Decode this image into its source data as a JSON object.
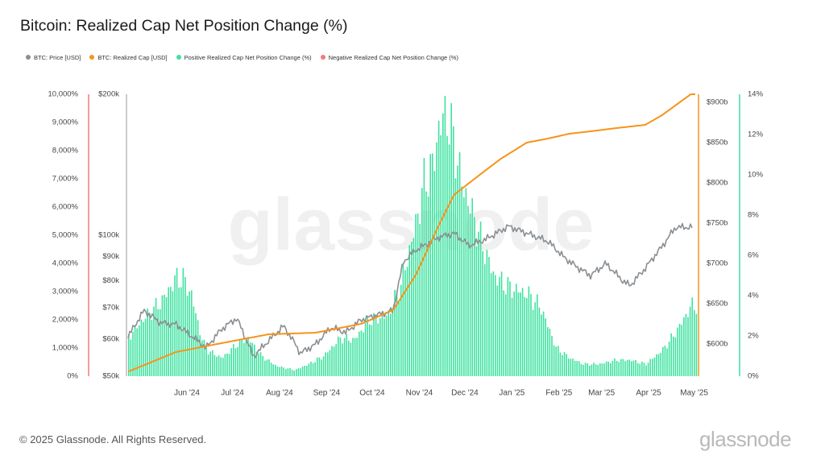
{
  "chart_data": {
    "type": "bar+line",
    "title": "Bitcoin: Realized Cap Net Position Change (%)",
    "legend": [
      {
        "label": "BTC: Price [USD]",
        "color": "#8a8f93"
      },
      {
        "label": "BTC: Realized Cap [USD]",
        "color": "#f7931a"
      },
      {
        "label": "Positive Realized Cap Net Position Change (%)",
        "color": "#3ee2a0"
      },
      {
        "label": "Negative Realized Cap Net Position Change (%)",
        "color": "#f47a7a"
      }
    ],
    "x_ticks": [
      "Jun '24",
      "Jul '24",
      "Aug '24",
      "Sep '24",
      "Oct '24",
      "Nov '24",
      "Dec '24",
      "Jan '25",
      "Feb '25",
      "Mar '25",
      "Apr '25",
      "May '25"
    ],
    "axes": {
      "left_pct": {
        "ticks": [
          "10,000%",
          "9,000%",
          "8,000%",
          "7,000%",
          "6,000%",
          "5,000%",
          "4,000%",
          "3,000%",
          "2,000%",
          "1,000%",
          "0%"
        ],
        "range": [
          0,
          10000
        ],
        "color": "#f47a7a"
      },
      "price": {
        "ticks": [
          "$200k",
          "$100k",
          "$90k",
          "$80k",
          "$70k",
          "$60k",
          "$50k"
        ],
        "values": [
          200000,
          100000,
          90000,
          80000,
          70000,
          60000,
          50000
        ],
        "scale": "log",
        "range": [
          50000,
          200000
        ]
      },
      "realized_cap": {
        "ticks": [
          "$900b",
          "$850b",
          "$800b",
          "$750b",
          "$700b",
          "$650b",
          "$600b"
        ],
        "values": [
          900,
          850,
          800,
          750,
          700,
          650,
          600
        ],
        "range": [
          560,
          910
        ],
        "color": "#f7931a"
      },
      "right_pct": {
        "ticks": [
          "14%",
          "12%",
          "10%",
          "8%",
          "6%",
          "4%",
          "2%",
          "0%"
        ],
        "values": [
          14,
          12,
          10,
          8,
          6,
          4,
          2,
          0
        ],
        "range": [
          0,
          14
        ],
        "color": "#3ee2a0"
      }
    },
    "grid": false,
    "legend_position": "top-left",
    "series": [
      {
        "name": "Positive Realized Cap Net Position Change (%)",
        "axis": "right_pct",
        "x": [
          "2024-05-15",
          "2024-05-25",
          "2024-06-05",
          "2024-06-15",
          "2024-06-20",
          "2024-06-25",
          "2024-07-01",
          "2024-07-05",
          "2024-07-15",
          "2024-07-25",
          "2024-08-01",
          "2024-08-10",
          "2024-08-20",
          "2024-09-01",
          "2024-09-10",
          "2024-09-20",
          "2024-10-01",
          "2024-10-10",
          "2024-10-20",
          "2024-11-01",
          "2024-11-10",
          "2024-11-20",
          "2024-11-25",
          "2024-12-01",
          "2024-12-05",
          "2024-12-10",
          "2024-12-15",
          "2024-12-20",
          "2024-12-25",
          "2025-01-01",
          "2025-01-10",
          "2025-01-20",
          "2025-02-01",
          "2025-02-10",
          "2025-02-20",
          "2025-03-01",
          "2025-03-10",
          "2025-03-20",
          "2025-04-01",
          "2025-04-10",
          "2025-04-20",
          "2025-05-01",
          "2025-05-10",
          "2025-05-20"
        ],
        "values": [
          2.0,
          2.9,
          3.7,
          4.9,
          4.8,
          4.0,
          2.0,
          1.3,
          0.9,
          1.6,
          1.9,
          1.0,
          0.5,
          0.3,
          0.6,
          1.0,
          1.9,
          1.8,
          2.8,
          3.0,
          4.6,
          7.7,
          9.6,
          10.5,
          12.5,
          13.0,
          11.5,
          9.5,
          8.5,
          6.8,
          5.0,
          4.4,
          4.1,
          3.4,
          1.4,
          0.9,
          0.6,
          0.6,
          0.8,
          0.8,
          0.6,
          1.3,
          2.2,
          3.5
        ]
      },
      {
        "name": "BTC: Price [USD]",
        "axis": "price",
        "x": [
          "2024-05-15",
          "2024-05-25",
          "2024-06-05",
          "2024-06-15",
          "2024-06-25",
          "2024-07-05",
          "2024-07-15",
          "2024-07-25",
          "2024-08-05",
          "2024-08-15",
          "2024-08-25",
          "2024-09-05",
          "2024-09-15",
          "2024-09-25",
          "2024-10-05",
          "2024-10-15",
          "2024-10-25",
          "2024-11-05",
          "2024-11-12",
          "2024-11-20",
          "2024-11-28",
          "2024-12-05",
          "2024-12-15",
          "2024-12-25",
          "2025-01-05",
          "2025-01-20",
          "2025-02-01",
          "2025-02-15",
          "2025-02-25",
          "2025-03-05",
          "2025-03-15",
          "2025-03-25",
          "2025-04-05",
          "2025-04-10",
          "2025-04-20",
          "2025-05-01",
          "2025-05-10",
          "2025-05-20"
        ],
        "values": [
          61000,
          69000,
          65000,
          64500,
          61000,
          57500,
          63000,
          66500,
          55000,
          59500,
          64000,
          56000,
          58500,
          63500,
          62000,
          66000,
          67500,
          69000,
          88000,
          93000,
          96000,
          99000,
          101000,
          95000,
          98000,
          104500,
          101000,
          97000,
          90000,
          86000,
          82000,
          87000,
          80000,
          78000,
          85000,
          94500,
          104000,
          104000
        ]
      },
      {
        "name": "BTC: Realized Cap [USD]",
        "axis": "realized_cap",
        "x": [
          "2024-05-15",
          "2024-06-15",
          "2024-07-15",
          "2024-08-15",
          "2024-09-15",
          "2024-10-15",
          "2024-11-05",
          "2024-11-20",
          "2024-12-05",
          "2024-12-15",
          "2025-01-01",
          "2025-01-15",
          "2025-02-01",
          "2025-02-15",
          "2025-03-01",
          "2025-03-15",
          "2025-04-01",
          "2025-04-20",
          "2025-05-01",
          "2025-05-20"
        ],
        "values": [
          566,
          590,
          601,
          612,
          614,
          625,
          642,
          686,
          747,
          785,
          810,
          830,
          850,
          855,
          861,
          864,
          868,
          872,
          884,
          910
        ]
      },
      {
        "name": "Negative Realized Cap Net Position Change (%)",
        "axis": "left_pct",
        "x": [],
        "values": []
      }
    ]
  },
  "watermark": "glassnode",
  "footer": {
    "copyright": "© 2025 Glassnode. All Rights Reserved.",
    "logo": "glassnode"
  }
}
